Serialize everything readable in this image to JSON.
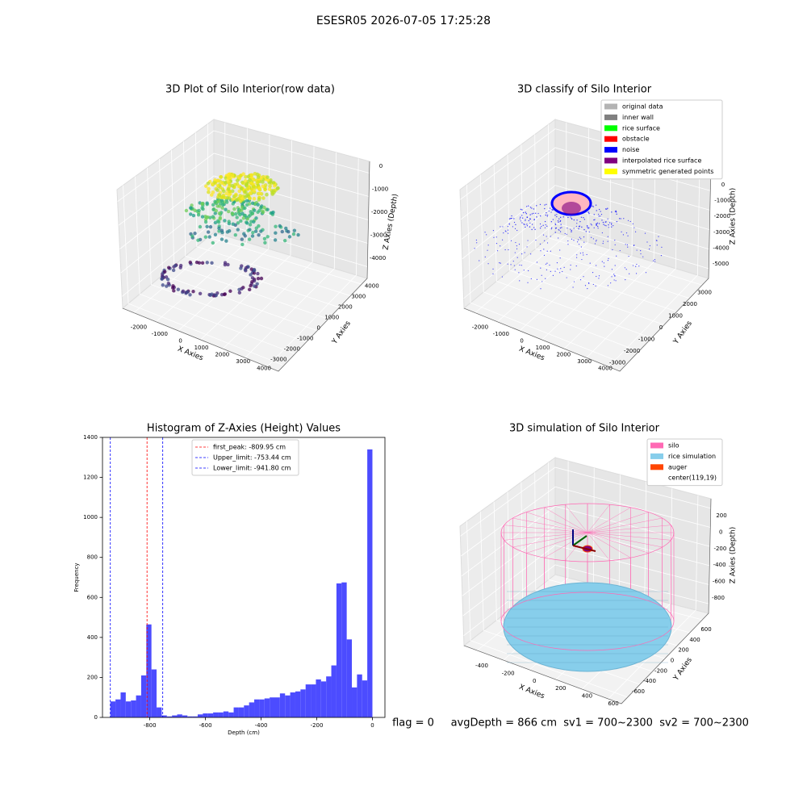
{
  "title": "ESESR05 2026-07-05 17:25:28",
  "footer": "flag = 0     avgDepth = 866 cm  sv1 = 700~2300  sv2 = 700~2300",
  "chart_data": [
    {
      "type": "scatter3d",
      "title": "3D Plot of Silo Interior(row data)",
      "xlabel": "X Axies",
      "ylabel": "Y Axies",
      "zlabel": "Z Axies (Depth)",
      "xlim": [
        -2500,
        4500
      ],
      "ylim": [
        -3500,
        4500
      ],
      "zlim": [
        -4500,
        500
      ],
      "xticks": [
        -2000,
        -1000,
        0,
        1000,
        2000,
        3000,
        4000
      ],
      "yticks": [
        -3000,
        -2000,
        -1000,
        0,
        1000,
        2000,
        3000,
        4000
      ],
      "zticks": [
        -4000,
        -3000,
        -2000,
        -1000,
        0
      ]
    },
    {
      "type": "scatter3d",
      "title": "3D classify of Silo Interior",
      "xlabel": "X Axies",
      "ylabel": "Y Axies",
      "zlabel": "Z Axies (Depth)",
      "xlim": [
        -2500,
        4500
      ],
      "ylim": [
        -3500,
        3500
      ],
      "zlim": [
        -5500,
        500
      ],
      "xticks": [
        -2000,
        -1000,
        0,
        1000,
        2000,
        3000,
        4000
      ],
      "yticks": [
        -3000,
        -2000,
        -1000,
        0,
        1000,
        2000,
        3000
      ],
      "zticks": [
        -5000,
        -4000,
        -3000,
        -2000,
        -1000,
        0
      ],
      "legend": [
        {
          "label": "original data",
          "color": "#b3b3b3"
        },
        {
          "label": "inner wall",
          "color": "#808080"
        },
        {
          "label": "rice surface",
          "color": "#00ff00"
        },
        {
          "label": "obstacle",
          "color": "#ff0000"
        },
        {
          "label": "noise",
          "color": "#0000ff"
        },
        {
          "label": "interpolated rice surface",
          "color": "#800080"
        },
        {
          "label": "symmetric generated points",
          "color": "#ffff00"
        }
      ]
    },
    {
      "type": "histogram",
      "title": "Histogram of Z-Axies (Height) Values",
      "xlabel": "Depth (cm)",
      "ylabel": "Frequency",
      "color": "#4c4cff",
      "bins": [
        -941.8,
        -923.33,
        -904.87,
        -886.4,
        -867.93,
        -849.47,
        -831.0,
        -812.53,
        -794.07,
        -775.6,
        -757.13,
        -738.67,
        -720.2,
        -701.73,
        -683.27,
        -664.8,
        -646.33,
        -627.87,
        -609.4,
        -590.93,
        -572.47,
        -554.0,
        -535.53,
        -517.07,
        -498.6,
        -480.13,
        -461.67,
        -443.2,
        -424.73,
        -406.27,
        -387.8,
        -369.33,
        -350.87,
        -332.4,
        -313.93,
        -295.47,
        -277.0,
        -258.53,
        -240.07,
        -221.6,
        -203.13,
        -184.67,
        -166.2,
        -147.73,
        -129.27,
        -110.8,
        -92.33,
        -73.87,
        -55.4,
        -36.93,
        -18.47,
        0
      ],
      "values": [
        80,
        90,
        125,
        80,
        85,
        110,
        210,
        465,
        240,
        50,
        10,
        5,
        10,
        15,
        10,
        5,
        5,
        15,
        20,
        20,
        25,
        25,
        30,
        25,
        50,
        50,
        60,
        75,
        90,
        90,
        95,
        100,
        100,
        120,
        110,
        125,
        130,
        140,
        165,
        165,
        190,
        180,
        205,
        260,
        670,
        675,
        390,
        150,
        215,
        185,
        1340
      ],
      "vlines": [
        {
          "label": "first_peak: -809.95 cm",
          "value": -809.95,
          "color": "#ff0000"
        },
        {
          "label": "Upper_limit: -753.44 cm",
          "value": -753.44,
          "color": "#0000ff"
        },
        {
          "label": "Lower_limit: -941.80 cm",
          "value": -941.8,
          "color": "#0000ff"
        }
      ],
      "legend_loc": "upper center",
      "xlim": [
        -970,
        45
      ],
      "ylim": [
        0,
        1400
      ],
      "xticks": [
        -800,
        -600,
        -400,
        -200,
        0
      ],
      "yticks": [
        0,
        200,
        400,
        600,
        800,
        1000,
        1200,
        1400
      ]
    },
    {
      "type": "surface3d",
      "title": "3D simulation of Silo Interior",
      "xlabel": "X Axies",
      "ylabel": "Y Axies",
      "zlabel": "Z Axies (Depth)",
      "xlim": [
        -500,
        700
      ],
      "ylim": [
        -700,
        700
      ],
      "zlim": [
        -900,
        300
      ],
      "xticks": [
        -400,
        -200,
        0,
        200,
        400,
        600
      ],
      "yticks": [
        -600,
        -400,
        -200,
        0,
        200,
        400,
        600
      ],
      "zticks": [
        -800,
        -600,
        -400,
        -200,
        0,
        200
      ],
      "legend": [
        {
          "label": "silo",
          "color": "#ff69b4"
        },
        {
          "label": "rice simulation",
          "color": "#87ceeb"
        },
        {
          "label": "auger",
          "color": "#ff4500"
        },
        {
          "label": "center(119,19)"
        }
      ]
    }
  ]
}
